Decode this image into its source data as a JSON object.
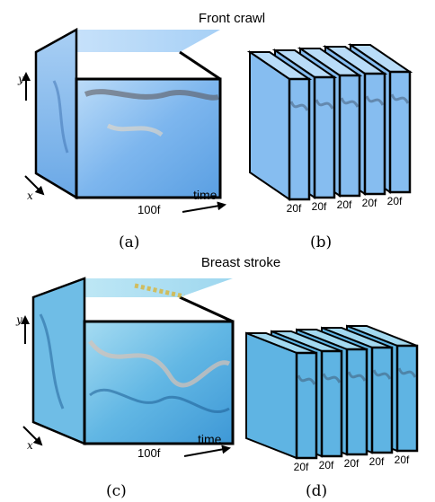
{
  "top": {
    "title": "Front crawl",
    "axis_y": "y",
    "axis_x": "x",
    "axis_time": "time",
    "cube_frames": "100f",
    "chunk_frames": [
      "20f",
      "20f",
      "20f",
      "20f",
      "20f"
    ],
    "caption_a": "(a)",
    "caption_b": "(b)"
  },
  "bottom": {
    "title": "Breast stroke",
    "axis_y": "y",
    "axis_x": "x",
    "axis_time": "time",
    "cube_frames": "100f",
    "chunk_frames": [
      "20f",
      "20f",
      "20f",
      "20f",
      "20f"
    ],
    "caption_c": "(c)",
    "caption_d": "(d)"
  },
  "colors": {
    "water_light": "#cfe6fb",
    "water_mid": "#8fc2f2",
    "water_deep": "#4f94dc",
    "edge": "#000000"
  }
}
